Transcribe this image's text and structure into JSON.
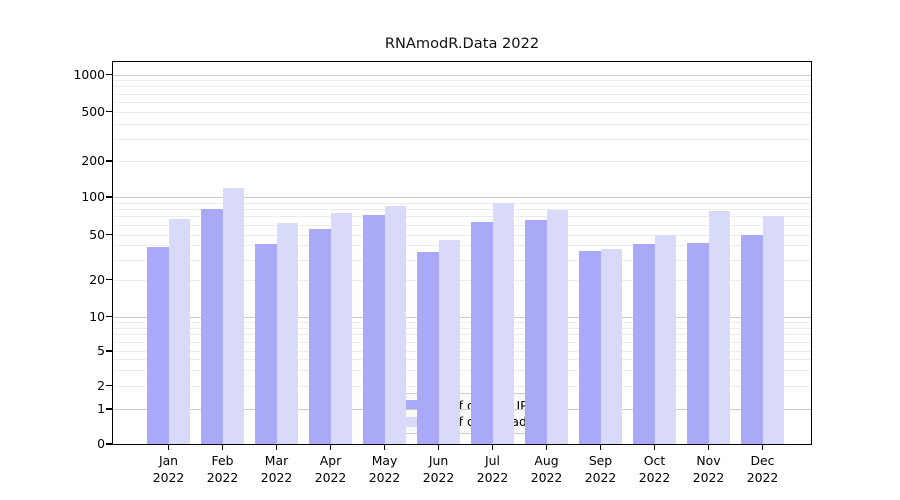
{
  "title": "RNAmodR.Data 2022",
  "colors": {
    "ips_bar": "#a9a9f7",
    "downloads_bar": "#d9d9fa",
    "grid_major": "#cccccc",
    "grid_minor": "#ececec",
    "axis": "#000000",
    "legend_bg": "rgba(247,247,247,0.8)",
    "legend_border": "#cccccc",
    "background": "#ffffff"
  },
  "chart_data": {
    "type": "bar",
    "title": "RNAmodR.Data 2022",
    "categories": [
      "Jan 2022",
      "Feb 2022",
      "Mar 2022",
      "Apr 2022",
      "May 2022",
      "Jun 2022",
      "Jul 2022",
      "Aug 2022",
      "Sep 2022",
      "Oct 2022",
      "Nov 2022",
      "Dec 2022"
    ],
    "x_tick_months": [
      "Jan",
      "Feb",
      "Mar",
      "Apr",
      "May",
      "Jun",
      "Jul",
      "Aug",
      "Sep",
      "Oct",
      "Nov",
      "Dec"
    ],
    "x_tick_year": "2022",
    "series": [
      {
        "name": "Nb of distinct IPs",
        "color": "#a9a9f7",
        "values": [
          39,
          80,
          41,
          55,
          72,
          35,
          63,
          65,
          36,
          41,
          42,
          50
        ]
      },
      {
        "name": "Nb of downloads",
        "color": "#d9d9fa",
        "values": [
          67,
          120,
          62,
          75,
          85,
          45,
          89,
          78,
          37,
          50,
          77,
          71
        ]
      }
    ],
    "y_axis": {
      "ticks": [
        0,
        1,
        2,
        5,
        10,
        20,
        50,
        100,
        200,
        500,
        1000
      ],
      "scale": "symlog",
      "range": [
        0,
        1000
      ]
    },
    "grid": true,
    "legend_position": "lower center inside plot"
  }
}
